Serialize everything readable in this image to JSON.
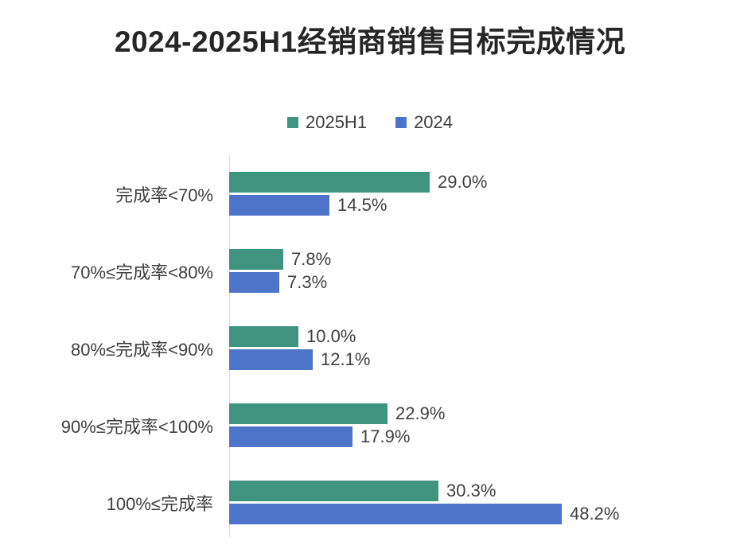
{
  "title": "2024-2025H1经销商销售目标完成情况",
  "legend": {
    "items": [
      {
        "label": "2025H1",
        "color": "#3F947F"
      },
      {
        "label": "2024",
        "color": "#4D74C9"
      }
    ]
  },
  "chart_data": {
    "type": "bar",
    "orientation": "horizontal",
    "title": "2024-2025H1经销商销售目标完成情况",
    "categories": [
      "完成率<70%",
      "70%≤完成率<80%",
      "80%≤完成率<90%",
      "90%≤完成率<100%",
      "100%≤完成率"
    ],
    "series": [
      {
        "name": "2025H1",
        "color": "#3F947F",
        "values": [
          29.0,
          7.8,
          10.0,
          22.9,
          30.3
        ],
        "value_labels": [
          "29.0%",
          "7.8%",
          "10.0%",
          "22.9%",
          "30.3%"
        ]
      },
      {
        "name": "2024",
        "color": "#4D74C9",
        "values": [
          14.5,
          7.3,
          12.1,
          17.9,
          48.2
        ],
        "value_labels": [
          "14.5%",
          "7.3%",
          "12.1%",
          "17.9%",
          "48.2%"
        ]
      }
    ],
    "value_suffix": "%",
    "xlim": [
      0,
      74
    ],
    "grid": false,
    "data_labels": true,
    "legend_position": "top"
  },
  "colors": {
    "background": "#ffffff",
    "title_text": "#262626",
    "label_text": "#404040",
    "axis_line": "#dcdcdc"
  }
}
